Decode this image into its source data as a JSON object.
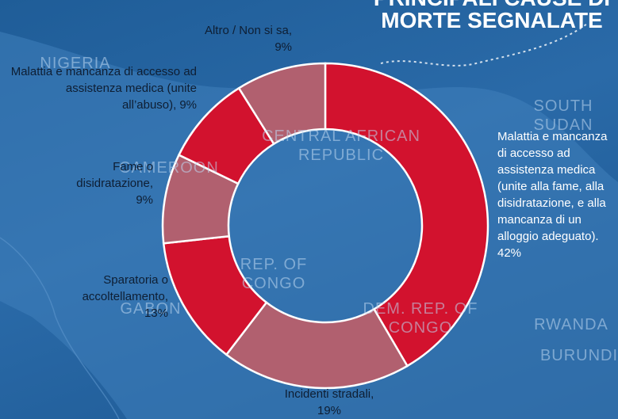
{
  "title": "PRINCIPALI CAUSE DI MORTE SEGNALATE",
  "map_labels": [
    "NIGERIA",
    "CENTRAL AFRICAN REPUBLIC",
    "SOUTH SUDAN",
    "CAMEROON",
    "REP. OF CONGO",
    "GABON",
    "DEM. REP. OF CONGO",
    "RWANDA",
    "BURUNDI"
  ],
  "chart_data": {
    "type": "pie",
    "donut": true,
    "categories": [
      "Malattia e mancanza di accesso ad assistenza medica (unite alla fame, alla disidratazione, e alla mancanza di un alloggio adeguato).",
      "Incidenti stradali,",
      "Sparatoria o accoltellamento,",
      "Fame o disidratazione,",
      "Malattia e mancanza di accesso ad assistenza medica (unite all’abuso),",
      "Altro / Non si sa,"
    ],
    "values": [
      42,
      19,
      13,
      9,
      9,
      9
    ],
    "value_labels": [
      "42%",
      "19%",
      "13%",
      "9%",
      "9%",
      "9%"
    ],
    "colors": [
      "#d2122e",
      "#b1606f",
      "#d2122e",
      "#b1606f",
      "#d2122e",
      "#b1606f"
    ]
  }
}
